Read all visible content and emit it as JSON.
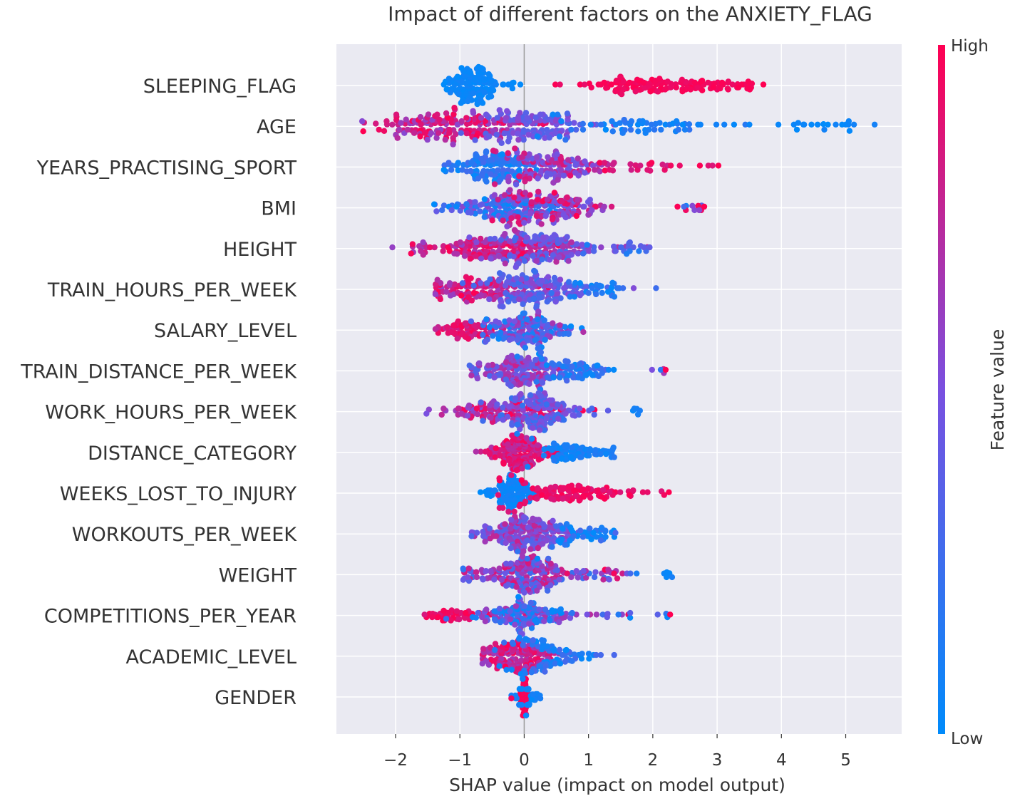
{
  "chart_data": {
    "type": "scatter",
    "subtype": "shap-beeswarm",
    "title": "Impact of different factors on the ANXIETY_FLAG",
    "xlabel": "SHAP value (impact on model output)",
    "ylabel": "",
    "xlim": [
      -2.92,
      5.87
    ],
    "xticks": [
      -2,
      -1,
      0,
      1,
      2,
      3,
      4,
      5
    ],
    "xtick_labels": [
      "−2",
      "−1",
      "0",
      "1",
      "2",
      "3",
      "4",
      "5"
    ],
    "grid": true,
    "colorbar": {
      "label": "Feature value",
      "high_label": "High",
      "low_label": "Low",
      "low_color": "#008bfb",
      "mid_color": "#7a50e0",
      "high_color": "#ff0052"
    },
    "features": [
      {
        "name": "SLEEPING_FLAG",
        "min": -1.25,
        "max": 3.72,
        "points": 300,
        "clusters": [
          {
            "c": -0.8,
            "s": 0.2,
            "n": 150,
            "w": 1.0,
            "fv": [
              0.0,
              0.08
            ]
          },
          {
            "c": -0.15,
            "s": 0.04,
            "n": 4,
            "w": 0.2,
            "fv": [
              0.0,
              0.05
            ]
          },
          {
            "c": 2.1,
            "s": 0.75,
            "n": 130,
            "w": 0.45,
            "fv": [
              0.92,
              1.0
            ]
          },
          {
            "c": 3.5,
            "s": 0.12,
            "n": 8,
            "w": 0.15,
            "fv": [
              0.95,
              1.0
            ]
          }
        ]
      },
      {
        "name": "AGE",
        "min": -2.52,
        "max": 5.45,
        "points": 360,
        "clusters": [
          {
            "c": -1.1,
            "s": 0.55,
            "n": 150,
            "w": 0.8,
            "fv": [
              0.55,
              1.0
            ]
          },
          {
            "c": 0.15,
            "s": 0.45,
            "n": 110,
            "w": 0.95,
            "fv": [
              0.3,
              0.6
            ]
          },
          {
            "c": 1.9,
            "s": 0.8,
            "n": 60,
            "w": 0.3,
            "fv": [
              0.0,
              0.2
            ]
          },
          {
            "c": 4.8,
            "s": 0.35,
            "n": 18,
            "w": 0.2,
            "fv": [
              0.0,
              0.08
            ]
          }
        ]
      },
      {
        "name": "YEARS_PRACTISING_SPORT",
        "min": -1.25,
        "max": 3.02,
        "points": 300,
        "clusters": [
          {
            "c": -0.55,
            "s": 0.3,
            "n": 120,
            "w": 1.0,
            "fv": [
              0.0,
              0.3
            ]
          },
          {
            "c": 0.4,
            "s": 0.4,
            "n": 130,
            "w": 0.85,
            "fv": [
              0.4,
              0.9
            ]
          },
          {
            "c": 1.8,
            "s": 0.6,
            "n": 25,
            "w": 0.25,
            "fv": [
              0.8,
              1.0
            ]
          }
        ]
      },
      {
        "name": "BMI",
        "min": -1.4,
        "max": 2.8,
        "points": 310,
        "clusters": [
          {
            "c": -0.25,
            "s": 0.45,
            "n": 140,
            "w": 1.0,
            "fv": [
              0.0,
              0.6
            ]
          },
          {
            "c": 0.5,
            "s": 0.45,
            "n": 130,
            "w": 0.85,
            "fv": [
              0.4,
              1.0
            ]
          },
          {
            "c": 2.6,
            "s": 0.12,
            "n": 10,
            "w": 0.2,
            "fv": [
              0.0,
              1.0
            ]
          }
        ]
      },
      {
        "name": "HEIGHT",
        "min": -2.05,
        "max": 1.95,
        "points": 320,
        "clusters": [
          {
            "c": -0.6,
            "s": 0.55,
            "n": 140,
            "w": 0.9,
            "fv": [
              0.6,
              1.0
            ]
          },
          {
            "c": 0.25,
            "s": 0.5,
            "n": 150,
            "w": 1.0,
            "fv": [
              0.25,
              0.75
            ]
          },
          {
            "c": 1.5,
            "s": 0.25,
            "n": 15,
            "w": 0.2,
            "fv": [
              0.1,
              0.4
            ]
          }
        ]
      },
      {
        "name": "TRAIN_HOURS_PER_WEEK",
        "min": -1.38,
        "max": 2.05,
        "points": 300,
        "clusters": [
          {
            "c": -0.7,
            "s": 0.4,
            "n": 110,
            "w": 0.8,
            "fv": [
              0.6,
              1.0
            ]
          },
          {
            "c": 0.2,
            "s": 0.4,
            "n": 150,
            "w": 1.0,
            "fv": [
              0.2,
              0.6
            ]
          },
          {
            "c": 1.2,
            "s": 0.3,
            "n": 25,
            "w": 0.3,
            "fv": [
              0.0,
              0.25
            ]
          }
        ]
      },
      {
        "name": "SALARY_LEVEL",
        "min": -1.38,
        "max": 0.92,
        "points": 280,
        "clusters": [
          {
            "c": -0.9,
            "s": 0.25,
            "n": 70,
            "w": 0.6,
            "fv": [
              0.75,
              1.0
            ]
          },
          {
            "c": 0.1,
            "s": 0.35,
            "n": 190,
            "w": 1.0,
            "fv": [
              0.0,
              0.7
            ]
          }
        ]
      },
      {
        "name": "TRAIN_DISTANCE_PER_WEEK",
        "min": -0.85,
        "max": 2.2,
        "points": 270,
        "clusters": [
          {
            "c": -0.1,
            "s": 0.35,
            "n": 170,
            "w": 1.0,
            "fv": [
              0.3,
              0.8
            ]
          },
          {
            "c": 0.8,
            "s": 0.35,
            "n": 70,
            "w": 0.5,
            "fv": [
              0.0,
              0.35
            ]
          },
          {
            "c": 2.1,
            "s": 0.1,
            "n": 4,
            "w": 0.15,
            "fv": [
              0.0,
              1.0
            ]
          }
        ]
      },
      {
        "name": "WORK_HOURS_PER_WEEK",
        "min": -1.52,
        "max": 1.8,
        "points": 290,
        "clusters": [
          {
            "c": -0.3,
            "s": 0.45,
            "n": 120,
            "w": 0.9,
            "fv": [
              0.5,
              1.0
            ]
          },
          {
            "c": 0.2,
            "s": 0.35,
            "n": 140,
            "w": 1.0,
            "fv": [
              0.2,
              0.6
            ]
          },
          {
            "c": 1.75,
            "s": 0.05,
            "n": 4,
            "w": 0.1,
            "fv": [
              0.0,
              0.1
            ]
          }
        ]
      },
      {
        "name": "DISTANCE_CATEGORY",
        "min": -0.75,
        "max": 1.4,
        "points": 280,
        "clusters": [
          {
            "c": -0.05,
            "s": 0.25,
            "n": 180,
            "w": 1.0,
            "fv": [
              0.7,
              1.0
            ]
          },
          {
            "c": 0.75,
            "s": 0.3,
            "n": 80,
            "w": 0.45,
            "fv": [
              0.0,
              0.15
            ]
          }
        ]
      },
      {
        "name": "WEEKS_LOST_TO_INJURY",
        "min": -0.68,
        "max": 2.25,
        "points": 250,
        "clusters": [
          {
            "c": -0.2,
            "s": 0.15,
            "n": 110,
            "w": 1.0,
            "fv": [
              0.0,
              0.1
            ]
          },
          {
            "c": 0.7,
            "s": 0.6,
            "n": 120,
            "w": 0.55,
            "fv": [
              0.85,
              1.0
            ]
          }
        ]
      },
      {
        "name": "WORKOUTS_PER_WEEK",
        "min": -0.82,
        "max": 1.42,
        "points": 260,
        "clusters": [
          {
            "c": 0.0,
            "s": 0.35,
            "n": 200,
            "w": 1.0,
            "fv": [
              0.3,
              0.8
            ]
          },
          {
            "c": 0.9,
            "s": 0.3,
            "n": 45,
            "w": 0.4,
            "fv": [
              0.0,
              0.3
            ]
          }
        ]
      },
      {
        "name": "WEIGHT",
        "min": -0.95,
        "max": 2.3,
        "points": 260,
        "clusters": [
          {
            "c": 0.0,
            "s": 0.35,
            "n": 200,
            "w": 1.0,
            "fv": [
              0.2,
              0.9
            ]
          },
          {
            "c": 1.1,
            "s": 0.5,
            "n": 30,
            "w": 0.3,
            "fv": [
              0.0,
              1.0
            ]
          },
          {
            "c": 2.25,
            "s": 0.05,
            "n": 4,
            "w": 0.12,
            "fv": [
              0.0,
              0.1
            ]
          }
        ]
      },
      {
        "name": "COMPETITIONS_PER_YEAR",
        "min": -1.55,
        "max": 2.27,
        "points": 260,
        "clusters": [
          {
            "c": -1.0,
            "s": 0.3,
            "n": 50,
            "w": 0.4,
            "fv": [
              0.85,
              1.0
            ]
          },
          {
            "c": 0.05,
            "s": 0.35,
            "n": 170,
            "w": 1.0,
            "fv": [
              0.0,
              0.7
            ]
          },
          {
            "c": 1.3,
            "s": 0.5,
            "n": 15,
            "w": 0.2,
            "fv": [
              0.0,
              1.0
            ]
          }
        ]
      },
      {
        "name": "ACADEMIC_LEVEL",
        "min": -0.65,
        "max": 1.4,
        "points": 240,
        "clusters": [
          {
            "c": -0.15,
            "s": 0.25,
            "n": 140,
            "w": 1.0,
            "fv": [
              0.6,
              1.0
            ]
          },
          {
            "c": 0.4,
            "s": 0.35,
            "n": 80,
            "w": 0.5,
            "fv": [
              0.0,
              0.3
            ]
          }
        ]
      },
      {
        "name": "GENDER",
        "min": -0.2,
        "max": 0.25,
        "points": 120,
        "clusters": [
          {
            "c": 0.0,
            "s": 0.03,
            "n": 80,
            "w": 1.0,
            "fv": [
              0.95,
              1.0
            ]
          },
          {
            "c": 0.12,
            "s": 0.08,
            "n": 30,
            "w": 0.35,
            "fv": [
              0.0,
              0.1
            ]
          },
          {
            "c": -0.1,
            "s": 0.05,
            "n": 10,
            "w": 0.2,
            "fv": [
              0.0,
              0.1
            ]
          }
        ]
      }
    ]
  }
}
